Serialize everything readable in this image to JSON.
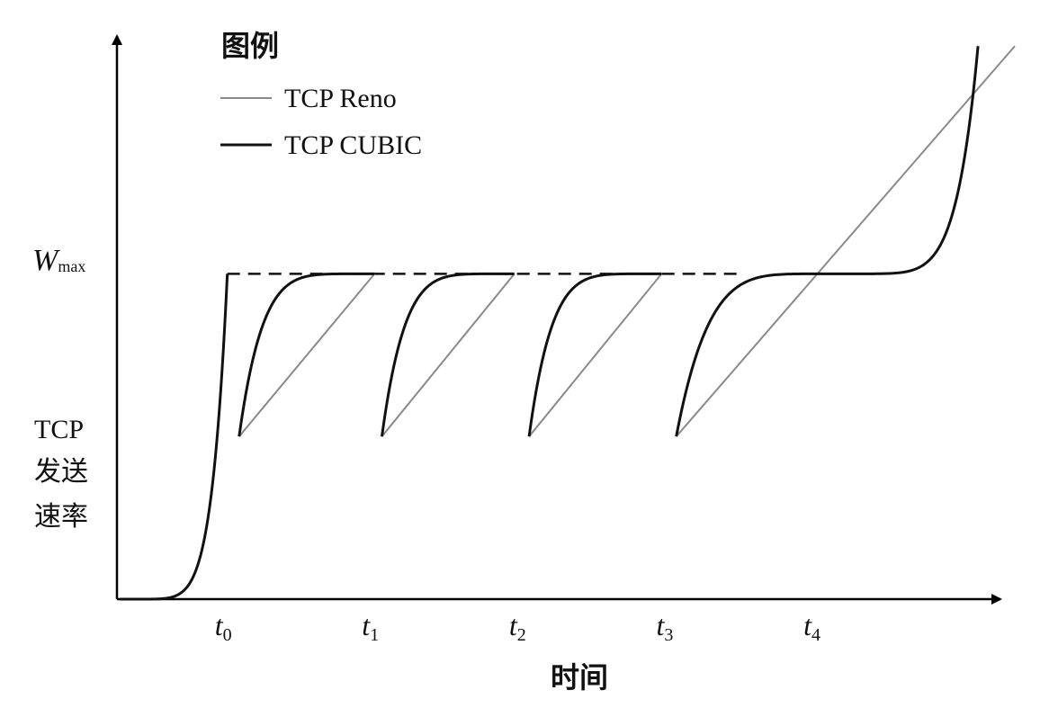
{
  "chart_data": {
    "type": "line",
    "title": "",
    "xlabel": "时间",
    "ylabel_lines": [
      "TCP",
      "发送",
      "速率"
    ],
    "x_ticks": [
      {
        "base": "t",
        "sub": "0",
        "x": 1
      },
      {
        "base": "t",
        "sub": "1",
        "x": 2
      },
      {
        "base": "t",
        "sub": "2",
        "x": 3
      },
      {
        "base": "t",
        "sub": "3",
        "x": 4
      },
      {
        "base": "t",
        "sub": "4",
        "x": 5
      }
    ],
    "xlim": [
      0.25,
      6.35
    ],
    "ylim": [
      0,
      1.72
    ],
    "y_reference": {
      "base": "W",
      "sub": "max",
      "value": 1.0,
      "style": "dashed",
      "x_range": [
        1,
        4.5
      ]
    },
    "legend": {
      "title": "图例",
      "placement": "top-left",
      "entries": [
        {
          "label": "TCP Reno",
          "color": "#8a8a8a"
        },
        {
          "label": "TCP CUBIC",
          "color": "#111111"
        }
      ]
    },
    "series": [
      {
        "name": "TCP Reno",
        "color": "#8a8a8a",
        "segments": [
          [
            [
              1.08,
              0.5
            ],
            [
              2.0,
              1.0
            ]
          ],
          [
            [
              2.05,
              0.5
            ],
            [
              2.95,
              1.0
            ]
          ],
          [
            [
              3.05,
              0.5
            ],
            [
              3.95,
              1.0
            ]
          ],
          [
            [
              4.05,
              0.5
            ],
            [
              6.35,
              1.7
            ]
          ]
        ]
      },
      {
        "name": "TCP CUBIC",
        "color": "#111111",
        "segments": [
          {
            "kind": "slow_start",
            "from": 0.27,
            "to": 1.0
          },
          {
            "kind": "concave",
            "start": 1.08,
            "end": 2.0,
            "low": 0.5,
            "high": 1.0
          },
          {
            "kind": "concave",
            "start": 2.05,
            "end": 2.95,
            "low": 0.5,
            "high": 1.0
          },
          {
            "kind": "concave",
            "start": 3.05,
            "end": 3.95,
            "low": 0.5,
            "high": 1.0
          },
          {
            "kind": "cubic",
            "start": 4.05,
            "inflection": 5.1,
            "end": 6.1,
            "low": 0.5,
            "high": 1.0
          }
        ]
      }
    ]
  }
}
